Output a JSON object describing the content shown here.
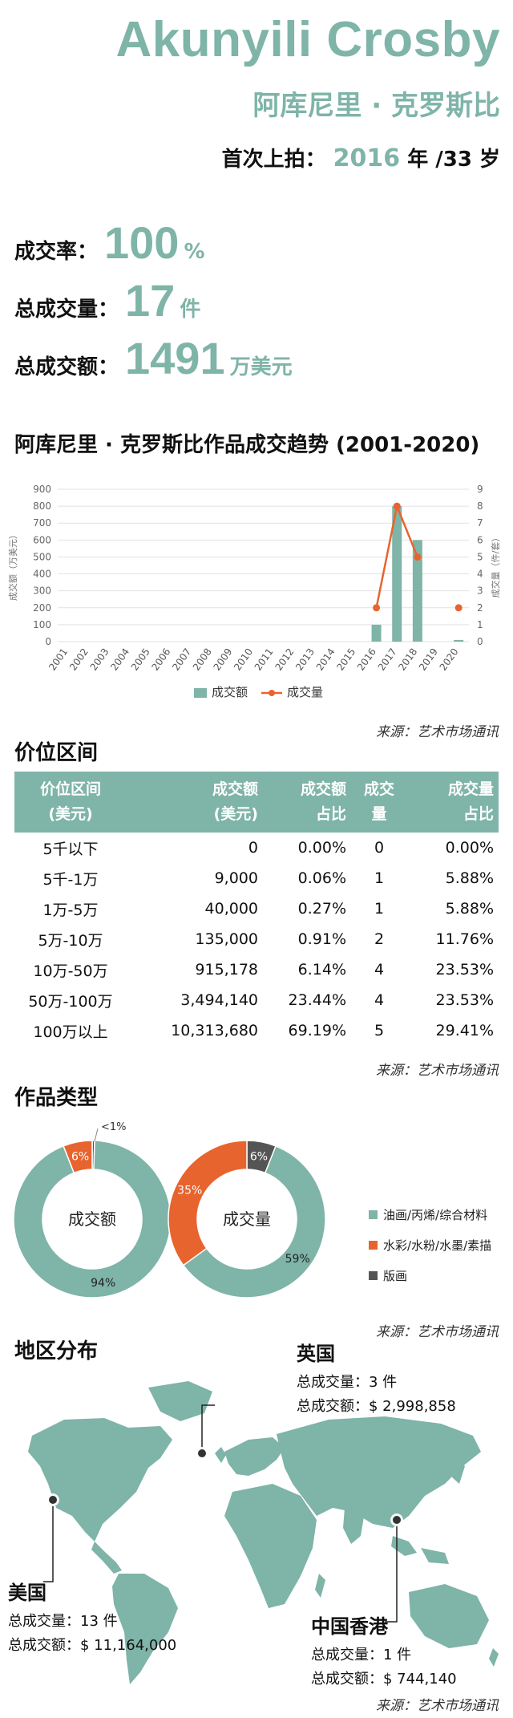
{
  "header": {
    "name_en": "Akunyili Crosby",
    "name_cn": "阿库尼里 · 克罗斯比",
    "first_auction_label": "首次上拍：",
    "first_auction_year": "2016",
    "first_auction_suffix": "年 /33 岁"
  },
  "stats": [
    {
      "label": "成交率：",
      "value": "100",
      "unit": "%"
    },
    {
      "label": "总成交量：",
      "value": "17",
      "unit": "件"
    },
    {
      "label": "总成交额：",
      "value": "1491",
      "unit": "万美元"
    }
  ],
  "trend_title": "阿库尼里 · 克罗斯比作品成交趋势 (2001-2020)",
  "source": "来源：艺术市场通讯",
  "colors": {
    "teal": "#7fb4a8",
    "orange": "#e8642e",
    "dark": "#555555",
    "grid": "#e2e2e2",
    "map": "#7fb4a8"
  },
  "chart_data": [
    {
      "type": "bar+line",
      "categories": [
        "2001",
        "2002",
        "2003",
        "2004",
        "2005",
        "2006",
        "2007",
        "2008",
        "2009",
        "2010",
        "2011",
        "2012",
        "2013",
        "2014",
        "2015",
        "2016",
        "2017",
        "2018",
        "2019",
        "2020"
      ],
      "left_axis_label": "成交额（万美元）",
      "right_axis_label": "成交量（件/套）",
      "left_ticks": [
        "900",
        "800",
        "700",
        "600",
        "500",
        "400",
        "300",
        "200",
        "100",
        "0"
      ],
      "right_ticks": [
        "9",
        "8",
        "7",
        "6",
        "5",
        "4",
        "3",
        "2",
        "1",
        "0"
      ],
      "ylim_left": [
        0,
        900
      ],
      "ylim_right": [
        0,
        9
      ],
      "series": [
        {
          "name": "成交额",
          "type": "bar",
          "values": [
            0,
            0,
            0,
            0,
            0,
            0,
            0,
            0,
            0,
            0,
            0,
            0,
            0,
            0,
            0,
            100,
            800,
            600,
            0,
            10
          ]
        },
        {
          "name": "成交量",
          "type": "line",
          "values": [
            null,
            null,
            null,
            null,
            null,
            null,
            null,
            null,
            null,
            null,
            null,
            null,
            null,
            null,
            null,
            2,
            8,
            5,
            null,
            2
          ]
        }
      ],
      "legend": "bottom"
    },
    {
      "type": "table",
      "title": "价位区间",
      "columns": [
        "价位区间\n(美元)",
        "成交额\n(美元)",
        "成交额\n占比",
        "成交\n量",
        "成交量\n占比"
      ],
      "column_lines": [
        [
          "价位区间",
          "(美元)"
        ],
        [
          "成交额",
          "(美元)"
        ],
        [
          "成交额",
          "占比"
        ],
        [
          "成交",
          "量"
        ],
        [
          "成交量",
          "占比"
        ]
      ],
      "rows": [
        [
          "5千以下",
          "0",
          "0.00%",
          "0",
          "0.00%"
        ],
        [
          "5千-1万",
          "9,000",
          "0.06%",
          "1",
          "5.88%"
        ],
        [
          "1万-5万",
          "40,000",
          "0.27%",
          "1",
          "5.88%"
        ],
        [
          "5万-10万",
          "135,000",
          "0.91%",
          "2",
          "11.76%"
        ],
        [
          "10万-50万",
          "915,178",
          "6.14%",
          "4",
          "23.53%"
        ],
        [
          "50万-100万",
          "3,494,140",
          "23.44%",
          "4",
          "23.53%"
        ],
        [
          "100万以上",
          "10,313,680",
          "69.19%",
          "5",
          "29.41%"
        ]
      ]
    },
    {
      "type": "pie",
      "title": "作品类型",
      "categories": [
        "油画/丙烯/综合材料",
        "水彩/水粉/水墨/素描",
        "版画"
      ],
      "charts": [
        {
          "center_label": "成交额",
          "values": [
            94,
            6,
            0.5
          ],
          "labels": [
            "94%",
            "6%",
            "<1%"
          ]
        },
        {
          "center_label": "成交量",
          "values": [
            59,
            35,
            6
          ],
          "labels": [
            "59%",
            "35%",
            "6%"
          ]
        }
      ],
      "legend": "right"
    }
  ],
  "region_title": "地区分布",
  "regions": [
    {
      "name": "英国",
      "count_label": "总成交量：3 件",
      "amount_label": "总成交额：$ 2,998,858"
    },
    {
      "name": "美国",
      "count_label": "总成交量：13 件",
      "amount_label": "总成交额：$ 11,164,000"
    },
    {
      "name": "中国香港",
      "count_label": "总成交量：1 件",
      "amount_label": "总成交额：$ 744,140"
    }
  ]
}
